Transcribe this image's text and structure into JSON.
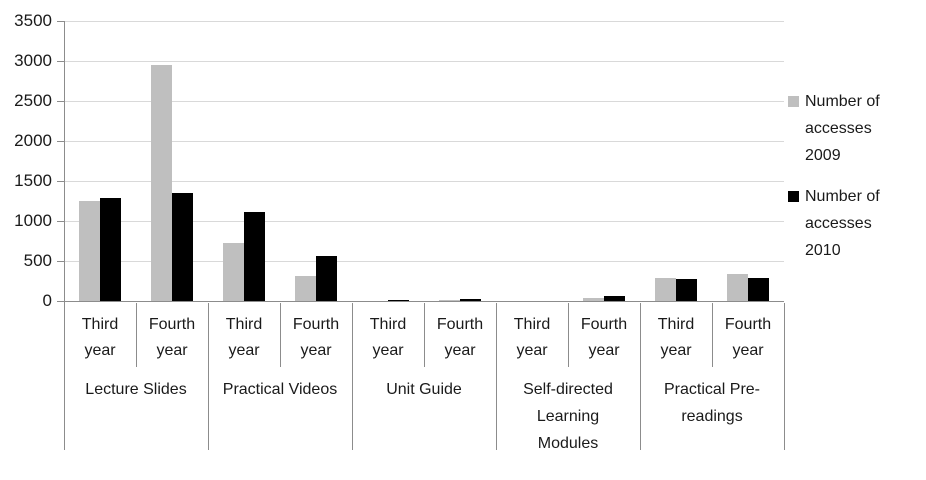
{
  "chart_data": {
    "type": "bar",
    "title": "",
    "xlabel": "",
    "ylabel": "",
    "ylim": [
      0,
      3500
    ],
    "ytick_step": 500,
    "yticks": [
      0,
      500,
      1000,
      1500,
      2000,
      2500,
      3000,
      3500
    ],
    "grid": true,
    "legend_position": "right",
    "groups": [
      {
        "label": "Lecture Slides",
        "subcategories": [
          "Third year",
          "Fourth year"
        ]
      },
      {
        "label": "Practical Videos",
        "subcategories": [
          "Third year",
          "Fourth year"
        ]
      },
      {
        "label": "Unit Guide",
        "subcategories": [
          "Third year",
          "Fourth year"
        ]
      },
      {
        "label": "Self-directed Learning Modules",
        "subcategories": [
          "Third year",
          "Fourth year"
        ]
      },
      {
        "label": "Practical Pre-readings",
        "subcategories": [
          "Third year",
          "Fourth year"
        ]
      }
    ],
    "categories_flat": [
      "Lecture Slides / Third year",
      "Lecture Slides / Fourth year",
      "Practical Videos / Third year",
      "Practical Videos / Fourth year",
      "Unit Guide / Third year",
      "Unit Guide / Fourth year",
      "Self-directed Learning Modules / Third year",
      "Self-directed Learning Modules / Fourth year",
      "Practical Pre-readings / Third year",
      "Practical Pre-readings / Fourth year"
    ],
    "series": [
      {
        "name": "Number of accesses 2009",
        "color": "#bfbfbf",
        "values": [
          1250,
          2950,
          730,
          310,
          5,
          10,
          5,
          35,
          290,
          340
        ]
      },
      {
        "name": "Number of accesses 2010",
        "color": "#000000",
        "values": [
          1290,
          1350,
          1110,
          560,
          10,
          25,
          5,
          60,
          275,
          290
        ]
      }
    ],
    "colors": {
      "gridline": "#d9d9d9",
      "axis": "#8c8c8c",
      "text": "#1a1a1a",
      "background": "#ffffff"
    }
  }
}
